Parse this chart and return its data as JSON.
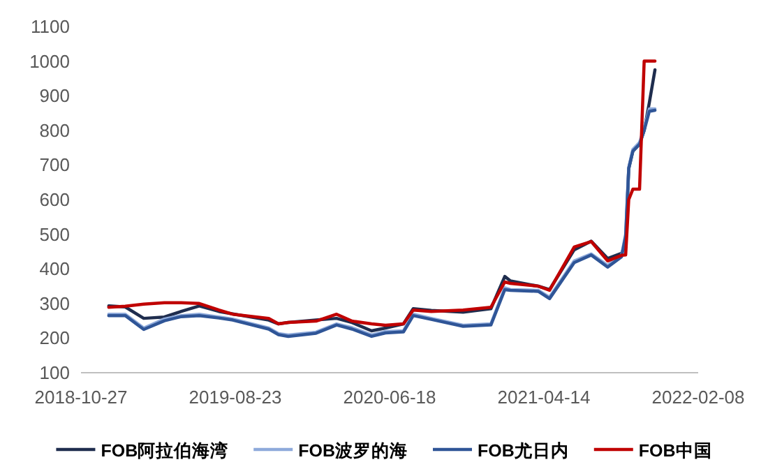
{
  "chart_data": {
    "type": "line",
    "x": [
      "2018-12-20",
      "2019-01-21",
      "2019-02-26",
      "2019-04-07",
      "2019-05-10",
      "2019-06-14",
      "2019-07-22",
      "2019-08-18",
      "2019-10-27",
      "2019-11-15",
      "2019-12-04",
      "2020-01-27",
      "2020-03-07",
      "2020-04-06",
      "2020-05-14",
      "2020-06-10",
      "2020-07-15",
      "2020-08-03",
      "2020-09-07",
      "2020-11-08",
      "2021-01-01",
      "2021-01-28",
      "2021-02-08",
      "2021-04-03",
      "2021-04-25",
      "2021-06-12",
      "2021-07-15",
      "2021-08-16",
      "2021-09-12",
      "2021-09-20",
      "2021-09-26",
      "2021-10-04",
      "2021-10-17",
      "2021-10-26",
      "2021-11-05",
      "2021-11-16"
    ],
    "series": [
      {
        "name": "FOB阿拉伯海湾",
        "color": "#1f2d4e",
        "values": [
          293,
          290,
          257,
          261,
          277,
          293,
          277,
          270,
          252,
          241,
          245,
          252,
          257,
          245,
          221,
          229,
          241,
          285,
          280,
          275,
          285,
          378,
          365,
          350,
          340,
          455,
          480,
          430,
          445,
          470,
          690,
          740,
          760,
          800,
          880,
          975
        ]
      },
      {
        "name": "FOB波罗的海",
        "color": "#8eaadb",
        "values": [
          269,
          269,
          229,
          255,
          265,
          269,
          261,
          255,
          229,
          213,
          209,
          217,
          241,
          230,
          209,
          219,
          221,
          269,
          257,
          237,
          241,
          345,
          340,
          338,
          318,
          423,
          443,
          410,
          439,
          500,
          693,
          745,
          765,
          806,
          862,
          862
        ]
      },
      {
        "name": "FOB尤日内",
        "color": "#2f5597",
        "values": [
          265,
          265,
          225,
          250,
          262,
          265,
          258,
          252,
          226,
          210,
          205,
          214,
          238,
          226,
          205,
          215,
          218,
          265,
          254,
          234,
          238,
          340,
          338,
          335,
          314,
          418,
          440,
          405,
          435,
          495,
          690,
          740,
          760,
          800,
          855,
          858
        ]
      },
      {
        "name": "FOB中国",
        "color": "#c00000",
        "values": [
          289,
          292,
          298,
          302,
          302,
          300,
          281,
          269,
          257,
          241,
          245,
          249,
          269,
          249,
          241,
          237,
          241,
          281,
          277,
          281,
          289,
          362,
          358,
          350,
          338,
          463,
          479,
          423,
          439,
          440,
          600,
          630,
          630,
          1000,
          1000,
          1000
        ]
      }
    ],
    "xlim": [
      "2018-10-27",
      "2022-02-08"
    ],
    "xticks": [
      {
        "value": "2018-10-27",
        "label": "2018-10-27"
      },
      {
        "value": "2019-08-23",
        "label": "2019-08-23"
      },
      {
        "value": "2020-06-18",
        "label": "2020-06-18"
      },
      {
        "value": "2021-04-14",
        "label": "2021-04-14"
      },
      {
        "value": "2022-02-08",
        "label": "2022-02-08"
      }
    ],
    "ylim": [
      100,
      1100
    ],
    "yticks": [
      100,
      200,
      300,
      400,
      500,
      600,
      700,
      800,
      900,
      1000,
      1100
    ],
    "legend": "bottom"
  }
}
